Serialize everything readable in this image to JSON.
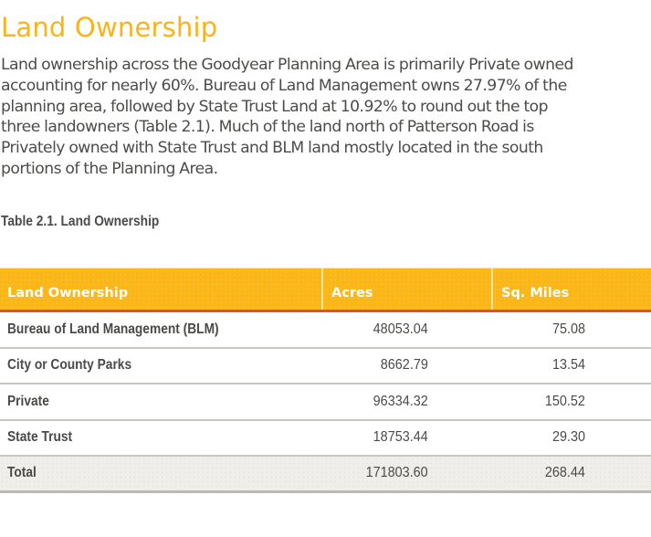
{
  "page": {
    "title": "Land Ownership",
    "intro_lines": [
      "Land ownership across the Goodyear Planning Area is primarily Private owned",
      "accounting for nearly 60%. Bureau of Land Management owns 27.97% of the",
      "planning area, followed by State Trust Land at 10.92% to round out the top",
      "three landowners (Table 2.1). Much of the land north of Patterson Road is",
      "Privately owned with State Trust and BLM land mostly located in the south",
      "portions of the Planning Area."
    ]
  },
  "table": {
    "caption": "Table 2.1. Land Ownership",
    "columns": [
      "Land Ownership",
      "Acres",
      "Sq. Miles"
    ],
    "rows": [
      {
        "owner": "Bureau of Land Management (BLM)",
        "acres": "48053.04",
        "sq_miles": "75.08"
      },
      {
        "owner": "City or County Parks",
        "acres": "8662.79",
        "sq_miles": "13.54"
      },
      {
        "owner": "Private",
        "acres": "96334.32",
        "sq_miles": "150.52"
      },
      {
        "owner": "State Trust",
        "acres": "18753.44",
        "sq_miles": "29.30"
      }
    ],
    "total": {
      "owner": "Total",
      "acres": "171803.60",
      "sq_miles": "268.44"
    }
  },
  "colors": {
    "title": "#f9b31b",
    "header_bg": "#fbb618",
    "header_border": "#e54d2a",
    "total_bg": "#efeeea",
    "text": "#4a4a48"
  }
}
